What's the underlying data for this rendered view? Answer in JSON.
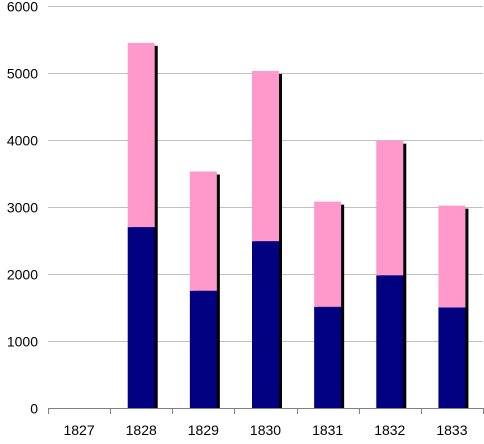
{
  "chart_data": {
    "type": "bar",
    "stacked": true,
    "title": "",
    "xlabel": "",
    "ylabel": "",
    "categories": [
      "1827",
      "1828",
      "1829",
      "1830",
      "1831",
      "1832",
      "1833"
    ],
    "series": [
      {
        "color": "#000080",
        "values": [
          0,
          2700,
          1750,
          2490,
          1510,
          1980,
          1500
        ]
      },
      {
        "color": "#FF99CC",
        "values": [
          0,
          2750,
          1780,
          2540,
          1570,
          2010,
          1520
        ]
      }
    ],
    "ylim": [
      0,
      6000
    ],
    "y_ticks": [
      "0",
      "1000",
      "2000",
      "3000",
      "4000",
      "5000",
      "6000"
    ],
    "grid": true,
    "legend": "none",
    "colors": {
      "grid": "#c0c0c0",
      "axis": "#808080",
      "shadow": "#000000"
    }
  }
}
